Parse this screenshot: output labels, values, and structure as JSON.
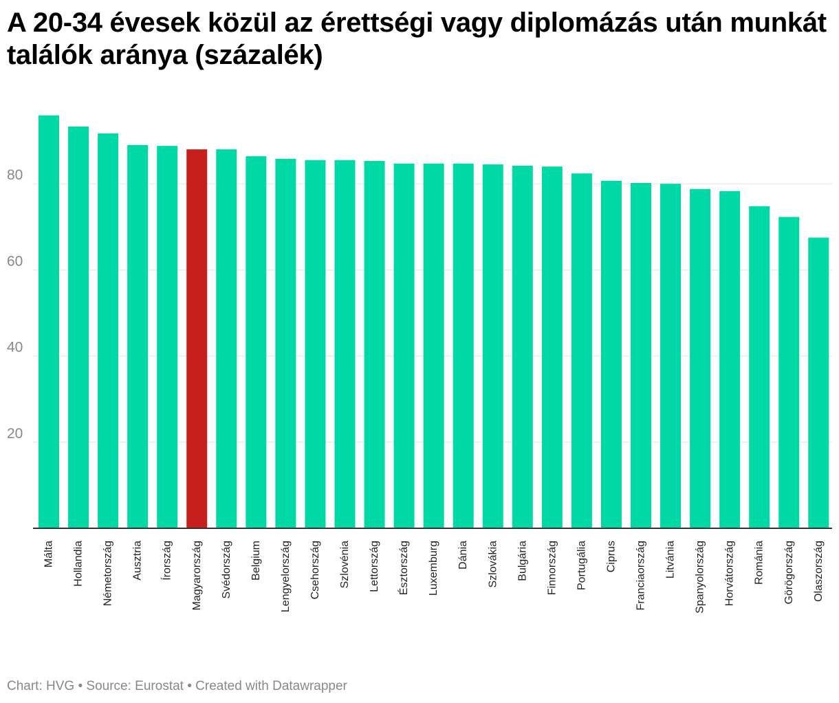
{
  "title": "A 20-34 évesek közül az érettségi vagy diplomázás után munkát találók aránya (százalék)",
  "footer": {
    "chart_credit": "Chart: HVG",
    "separator": " • ",
    "source": "Source: Eurostat",
    "created": "Created with Datawrapper"
  },
  "colors": {
    "bar": "#00d9a6",
    "highlight": "#c71e1e",
    "grid": "#e3e3e3",
    "axis": "#333333",
    "tick_text": "#888888",
    "label_text": "#222222"
  },
  "chart_data": {
    "type": "bar",
    "title": "A 20-34 évesek közül az érettségi vagy diplomázás után munkát találók aránya (százalék)",
    "xlabel": "",
    "ylabel": "",
    "ylim": [
      0,
      96
    ],
    "yticks": [
      20,
      40,
      60,
      80
    ],
    "grid": true,
    "highlight": "Magyarország",
    "categories": [
      "Málta",
      "Hollandia",
      "Németország",
      "Ausztria",
      "Írország",
      "Magyarország",
      "Svédország",
      "Belgium",
      "Lengyelország",
      "Csehország",
      "Szlovénia",
      "Lettország",
      "Észtország",
      "Luxemburg",
      "Dánia",
      "Szlovákia",
      "Bulgária",
      "Finnország",
      "Portugália",
      "Ciprus",
      "Franciaország",
      "Litvánia",
      "Spanyolország",
      "Horvátország",
      "Románia",
      "Görögország",
      "Olaszország"
    ],
    "values": [
      95.9,
      93.3,
      91.7,
      89.0,
      88.8,
      88.0,
      88.0,
      86.4,
      85.8,
      85.5,
      85.5,
      85.3,
      84.7,
      84.7,
      84.7,
      84.5,
      84.2,
      84.0,
      82.4,
      80.7,
      80.2,
      80.0,
      78.8,
      78.3,
      74.8,
      72.3,
      67.5
    ]
  }
}
